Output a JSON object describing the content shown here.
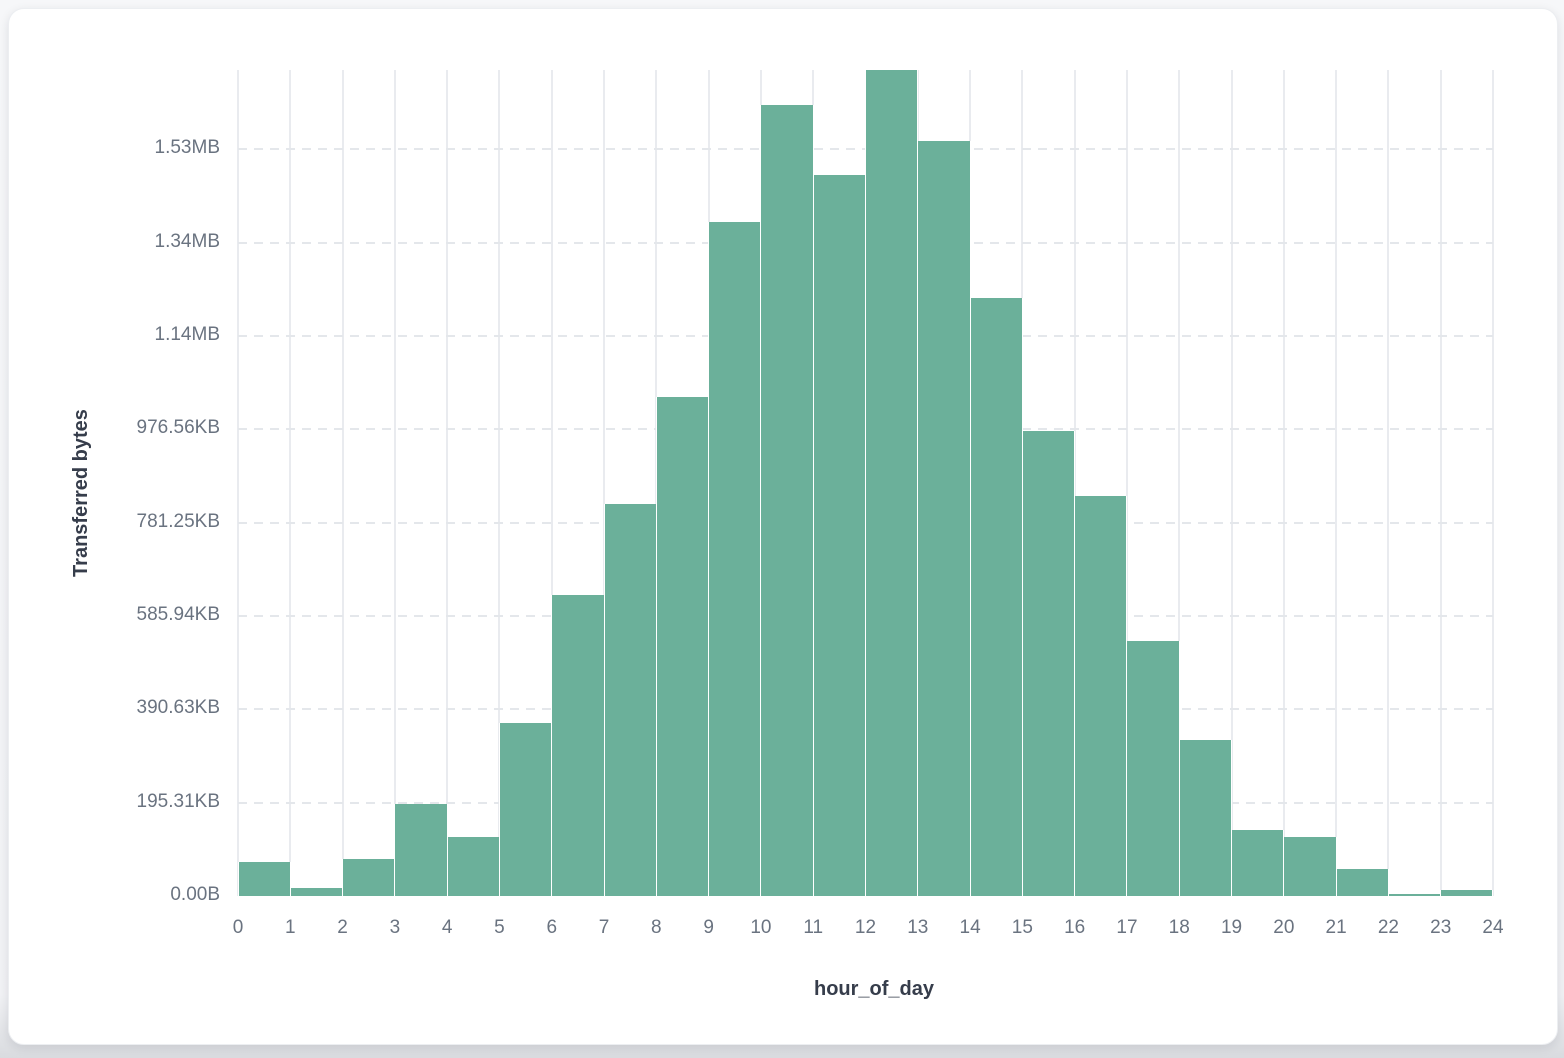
{
  "chart_data": {
    "type": "bar",
    "title": "",
    "xlabel": "hour_of_day",
    "ylabel": "Transferred bytes",
    "x_bins": [
      0,
      1,
      2,
      3,
      4,
      5,
      6,
      7,
      8,
      9,
      10,
      11,
      12,
      13,
      14,
      15,
      16,
      17,
      18,
      19,
      20,
      21,
      22,
      23
    ],
    "values_bytes": [
      73500,
      16500,
      79000,
      197000,
      126000,
      370000,
      645000,
      840000,
      1070000,
      1444000,
      1694000,
      1546000,
      1770000,
      1617000,
      1282000,
      997000,
      857000,
      547000,
      334000,
      141000,
      126000,
      57000,
      5000,
      13000
    ],
    "x_tick_labels": [
      "0",
      "1",
      "2",
      "3",
      "4",
      "5",
      "6",
      "7",
      "8",
      "9",
      "10",
      "11",
      "12",
      "13",
      "14",
      "15",
      "16",
      "17",
      "18",
      "19",
      "20",
      "21",
      "22",
      "23",
      "24"
    ],
    "y_tick_labels": [
      "0.00B",
      "195.31KB",
      "390.63KB",
      "585.94KB",
      "781.25KB",
      "976.56KB",
      "1.14MB",
      "1.34MB",
      "1.53MB"
    ],
    "y_tick_values_bytes": [
      0,
      200000,
      400000,
      600000,
      800000,
      1000000,
      1200000,
      1400000,
      1600000
    ],
    "ylim_bytes": [
      0,
      1770000
    ],
    "xlim": [
      0,
      24
    ],
    "grid": {
      "horizontal": "dashed",
      "vertical": "solid"
    },
    "legend": "none",
    "bar_color": "#6bb09a",
    "gridline_color": "#e9ebef",
    "tick_label_color": "#6a7380",
    "axis_title_color": "#363d4b"
  }
}
